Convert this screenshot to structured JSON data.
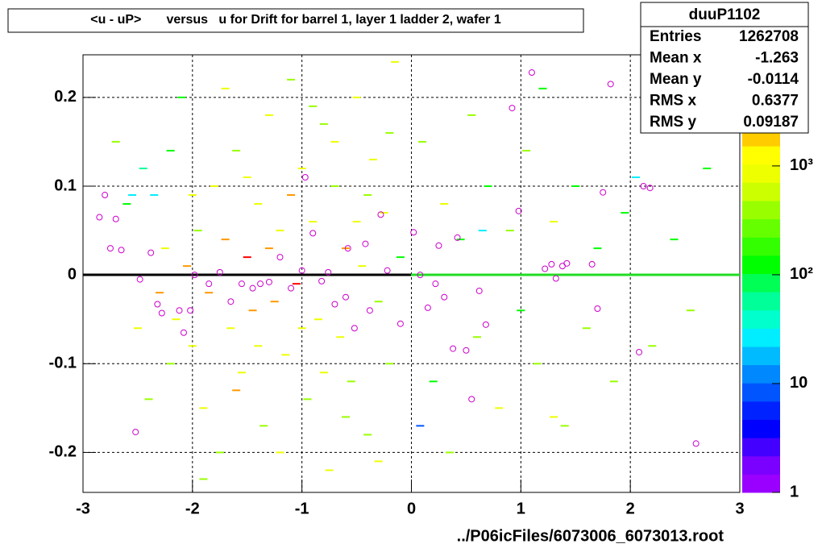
{
  "chart_data": {
    "type": "heatmap",
    "title": "<u - uP>       versus   u for Drift for barrel 1, layer 1 ladder 2, wafer 1",
    "x_label": "../P06icFiles/6073006_6073013.root",
    "xlim": [
      -3,
      3
    ],
    "ylim": [
      -0.245,
      0.248
    ],
    "xticks": [
      -3,
      -2,
      -1,
      0,
      1,
      2,
      3
    ],
    "yticks": [
      -0.2,
      -0.1,
      0,
      0.1,
      0.2
    ],
    "grid": true,
    "zlim": [
      1,
      10500
    ],
    "zlog": true,
    "zticks": [
      1,
      10,
      {
        "value": 100,
        "label": "10²"
      },
      {
        "value": 1000,
        "label": "10³"
      }
    ],
    "palette": [
      "#9900ff",
      "#7a00ff",
      "#4400ff",
      "#0000ff",
      "#0022ff",
      "#0055ff",
      "#0088ff",
      "#00bbff",
      "#00eeff",
      "#00ffcc",
      "#00ff99",
      "#00ff55",
      "#00ff00",
      "#33ff00",
      "#66ff00",
      "#99ff00",
      "#ccff00",
      "#eeff00",
      "#ffff00",
      "#ffcc00",
      "#ff9900",
      "#ff6600",
      "#ff3300",
      "#ff0000"
    ],
    "cells": [
      [
        -2.7,
        0.15,
        400
      ],
      [
        -2.6,
        0.08,
        150
      ],
      [
        -2.5,
        -0.06,
        1000
      ],
      [
        -2.45,
        0.12,
        60
      ],
      [
        -2.35,
        0.09,
        30
      ],
      [
        -2.3,
        -0.02,
        3000
      ],
      [
        -2.25,
        0.03,
        1000
      ],
      [
        -2.2,
        -0.1,
        400
      ],
      [
        -2.15,
        -0.05,
        1000
      ],
      [
        -2.1,
        0.2,
        150
      ],
      [
        -2.05,
        0.01,
        3000
      ],
      [
        -2.0,
        -0.08,
        1000
      ],
      [
        -1.95,
        0.05,
        400
      ],
      [
        -1.9,
        -0.15,
        1000
      ],
      [
        -1.85,
        -0.02,
        3000
      ],
      [
        -1.8,
        0.1,
        1000
      ],
      [
        -1.75,
        -0.2,
        400
      ],
      [
        -1.7,
        0.04,
        3000
      ],
      [
        -1.65,
        -0.06,
        1000
      ],
      [
        -1.6,
        0.14,
        400
      ],
      [
        -1.55,
        -0.11,
        1000
      ],
      [
        -1.5,
        0.02,
        8000
      ],
      [
        -1.45,
        -0.04,
        3000
      ],
      [
        -1.4,
        0.08,
        1000
      ],
      [
        -1.35,
        -0.17,
        400
      ],
      [
        -1.3,
        0.18,
        1000
      ],
      [
        -1.25,
        -0.03,
        3000
      ],
      [
        -1.2,
        0.05,
        1000
      ],
      [
        -1.15,
        -0.09,
        1000
      ],
      [
        -1.1,
        0.22,
        400
      ],
      [
        -1.05,
        -0.01,
        8000
      ],
      [
        -1.0,
        0.12,
        1000
      ],
      [
        -0.95,
        -0.14,
        400
      ],
      [
        -0.9,
        0.06,
        1000
      ],
      [
        -0.85,
        -0.05,
        1000
      ],
      [
        -0.8,
        0.17,
        400
      ],
      [
        -0.75,
        -0.22,
        1000
      ],
      [
        -0.7,
        0.1,
        400
      ],
      [
        -0.65,
        -0.07,
        1000
      ],
      [
        -0.6,
        0.03,
        3000
      ],
      [
        -0.55,
        -0.12,
        400
      ],
      [
        -0.5,
        0.2,
        1000
      ],
      [
        -0.45,
        0.01,
        1000
      ],
      [
        -0.4,
        -0.18,
        400
      ],
      [
        -0.35,
        0.13,
        1000
      ],
      [
        -0.3,
        -0.03,
        400
      ],
      [
        -0.25,
        0.07,
        1000
      ],
      [
        -0.2,
        -0.1,
        400
      ],
      [
        -0.15,
        0.24,
        1000
      ],
      [
        -0.1,
        0.02,
        150
      ],
      [
        -2.4,
        -0.14,
        400
      ],
      [
        -2.2,
        0.14,
        150
      ],
      [
        -2.0,
        0.09,
        1000
      ],
      [
        -1.9,
        -0.23,
        400
      ],
      [
        -1.7,
        0.21,
        1000
      ],
      [
        -1.6,
        -0.13,
        3000
      ],
      [
        -1.5,
        0.11,
        1000
      ],
      [
        -1.4,
        -0.08,
        1000
      ],
      [
        -1.3,
        0.03,
        3000
      ],
      [
        -1.2,
        -0.2,
        1000
      ],
      [
        -1.1,
        0.09,
        3000
      ],
      [
        -1.0,
        -0.06,
        1000
      ],
      [
        -0.9,
        0.19,
        400
      ],
      [
        -0.8,
        -0.11,
        1000
      ],
      [
        -0.7,
        0.15,
        1000
      ],
      [
        -0.6,
        -0.16,
        400
      ],
      [
        -0.5,
        0.06,
        1000
      ],
      [
        -0.4,
        0.09,
        400
      ],
      [
        -0.3,
        -0.21,
        1000
      ],
      [
        -0.2,
        0.16,
        400
      ],
      [
        0.1,
        0.15,
        400
      ],
      [
        0.2,
        -0.12,
        150
      ],
      [
        0.3,
        0.08,
        1000
      ],
      [
        0.35,
        -0.2,
        400
      ],
      [
        0.45,
        0.04,
        150
      ],
      [
        0.55,
        0.18,
        400
      ],
      [
        0.6,
        -0.07,
        400
      ],
      [
        0.7,
        0.1,
        150
      ],
      [
        0.8,
        -0.15,
        1000
      ],
      [
        0.9,
        0.05,
        400
      ],
      [
        1.0,
        -0.04,
        150
      ],
      [
        1.05,
        0.14,
        400
      ],
      [
        1.15,
        -0.1,
        400
      ],
      [
        1.2,
        0.21,
        150
      ],
      [
        1.3,
        0.06,
        1000
      ],
      [
        1.4,
        -0.17,
        400
      ],
      [
        1.5,
        0.1,
        150
      ],
      [
        1.6,
        -0.06,
        400
      ],
      [
        1.7,
        0.03,
        150
      ],
      [
        1.85,
        -0.12,
        400
      ],
      [
        1.95,
        0.07,
        150
      ],
      [
        2.05,
        0.11,
        25
      ],
      [
        2.2,
        -0.08,
        400
      ],
      [
        2.4,
        0.04,
        150
      ],
      [
        2.55,
        -0.04,
        400
      ],
      [
        2.7,
        0.12,
        150
      ],
      [
        0.08,
        -0.17,
        8
      ],
      [
        1.3,
        -0.16,
        1000
      ],
      [
        0.65,
        0.05,
        25
      ],
      [
        -2.55,
        0.09,
        25
      ]
    ],
    "marker_color": "#cc00cc",
    "profile": {
      "x": [
        -2.85,
        -2.8,
        -2.75,
        -2.7,
        -2.65,
        -2.52,
        -2.48,
        -2.38,
        -2.32,
        -2.28,
        -2.12,
        -2.08,
        -2.02,
        -1.98,
        -1.85,
        -1.75,
        -1.65,
        -1.55,
        -1.45,
        -1.38,
        -1.3,
        -1.2,
        -1.1,
        -1.0,
        -0.97,
        -0.9,
        -0.82,
        -0.76,
        -0.7,
        -0.6,
        -0.58,
        -0.52,
        -0.42,
        -0.38,
        -0.28,
        -0.22,
        -0.1,
        0.02,
        0.08,
        0.15,
        0.25,
        0.22,
        0.3,
        0.38,
        0.42,
        0.5,
        0.55,
        0.62,
        0.68,
        0.92,
        0.98,
        1.1,
        1.22,
        1.28,
        1.32,
        1.38,
        1.42,
        1.65,
        1.7,
        1.75,
        1.82,
        2.08,
        2.12,
        2.18,
        2.6
      ],
      "y": [
        0.065,
        0.09,
        0.03,
        0.063,
        0.028,
        -0.177,
        -0.005,
        0.025,
        -0.033,
        -0.043,
        -0.04,
        -0.065,
        -0.04,
        0.0,
        -0.01,
        0.003,
        -0.03,
        -0.01,
        -0.015,
        -0.01,
        -0.008,
        0.02,
        -0.015,
        0.005,
        0.11,
        0.047,
        -0.007,
        0.003,
        -0.033,
        -0.025,
        0.03,
        -0.06,
        0.035,
        -0.04,
        0.068,
        0.005,
        -0.055,
        0.048,
        0.0,
        -0.037,
        0.033,
        -0.01,
        -0.025,
        -0.083,
        0.042,
        -0.085,
        -0.14,
        -0.018,
        -0.056,
        0.188,
        0.072,
        0.228,
        0.007,
        0.012,
        -0.004,
        0.01,
        0.013,
        0.012,
        -0.038,
        0.093,
        0.215,
        -0.087,
        0.1,
        0.098,
        -0.19
      ]
    },
    "stats": {
      "name": "duuP1102",
      "rows": [
        [
          "Entries",
          1262708
        ],
        [
          "Mean x",
          -1.263
        ],
        [
          "Mean y",
          -0.0114
        ],
        [
          "RMS x",
          0.6377
        ],
        [
          "RMS y",
          0.09187
        ]
      ]
    }
  }
}
